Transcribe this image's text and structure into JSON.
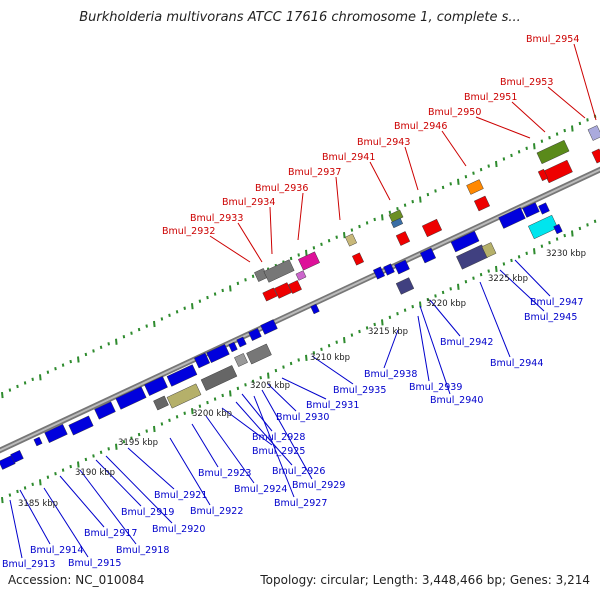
{
  "title": "Burkholderia multivorans ATCC 17616 chromosome 1, complete s...",
  "accession_text": "Accession: NC_010084",
  "info_text": "Topology: circular; Length: 3,448,466 bp; Genes: 3,214",
  "colors": {
    "forward_label": "#cc0000",
    "reverse_label": "#0000cc",
    "backbone": "#888888",
    "tick": "#2e8b2e"
  },
  "scale_labels": [
    "3185 kbp",
    "3190 kbp",
    "3195 kbp",
    "3200 kbp",
    "3205 kbp",
    "3210 kbp",
    "3215 kbp",
    "3220 kbp",
    "3225 kbp",
    "3230 kbp"
  ],
  "forward_genes": [
    "Bmul_2932",
    "Bmul_2933",
    "Bmul_2934",
    "Bmul_2936",
    "Bmul_2937",
    "Bmul_2941",
    "Bmul_2943",
    "Bmul_2946",
    "Bmul_2950",
    "Bmul_2951",
    "Bmul_2953",
    "Bmul_2954"
  ],
  "reverse_genes": [
    "Bmul_2913",
    "Bmul_2914",
    "Bmul_2915",
    "Bmul_2917",
    "Bmul_2918",
    "Bmul_2919",
    "Bmul_2920",
    "Bmul_2921",
    "Bmul_2922",
    "Bmul_2923",
    "Bmul_2924",
    "Bmul_2925",
    "Bmul_2926",
    "Bmul_2927",
    "Bmul_2928",
    "Bmul_2929",
    "Bmul_2930",
    "Bmul_2931",
    "Bmul_2935",
    "Bmul_2938",
    "Bmul_2939",
    "Bmul_2940",
    "Bmul_2942",
    "Bmul_2944",
    "Bmul_2945",
    "Bmul_2947"
  ]
}
